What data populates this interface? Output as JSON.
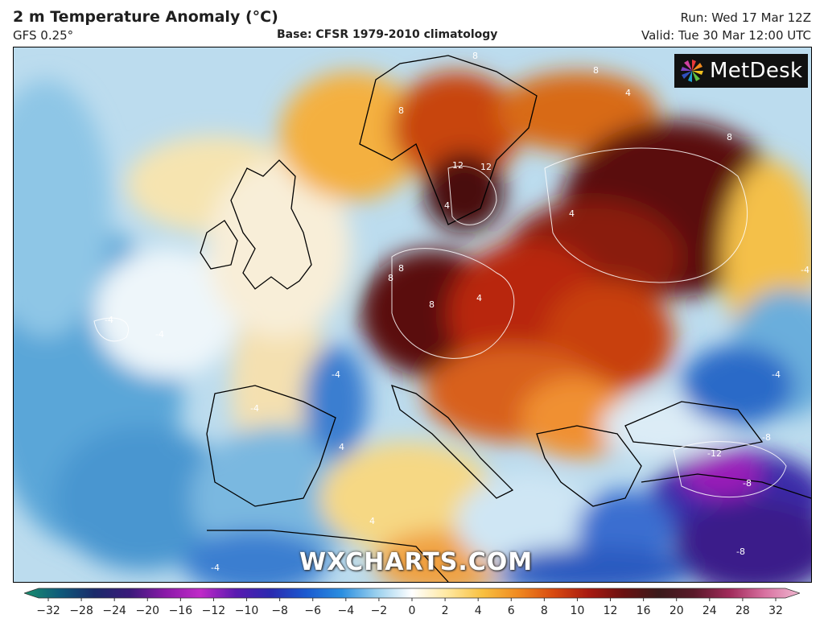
{
  "header": {
    "title": "2 m Temperature Anomaly (°C)",
    "model": "GFS 0.25°",
    "base": "Base: CFSR 1979-2010 climatology",
    "run": "Run: Wed 17 Mar 12Z",
    "valid": "Valid: Tue 30 Mar 12:00 UTC"
  },
  "brand": {
    "name": "MetDesk"
  },
  "watermark": "WXCHARTS.COM",
  "contour_labels": [
    "8",
    "8",
    "8",
    "12",
    "12",
    "8",
    "8",
    "8",
    "8",
    "4",
    "4",
    "4",
    "4",
    "-4",
    "-4",
    "-4",
    "-4",
    "-4",
    "-4",
    "-8",
    "-8",
    "-8",
    "-12",
    "4",
    "4",
    "-4"
  ],
  "colorbar": {
    "ticks": [
      "−32",
      "−28",
      "−24",
      "−20",
      "−16",
      "−12",
      "−10",
      "−8",
      "−6",
      "−4",
      "−2",
      "0",
      "2",
      "4",
      "6",
      "8",
      "10",
      "12",
      "16",
      "20",
      "24",
      "28",
      "32"
    ],
    "colors": [
      "#1a8f6e",
      "#0e5b7a",
      "#1a2a6a",
      "#3a1a7a",
      "#8a1aa8",
      "#c02ac8",
      "#5a1ab0",
      "#2a2ab0",
      "#1a5ad0",
      "#2a8ee0",
      "#9ad0ee",
      "#ffffff",
      "#ffe8a0",
      "#f8c040",
      "#f08a20",
      "#d84a10",
      "#a81a10",
      "#6a1010",
      "#3a1a1a",
      "#5a1a2a",
      "#a02a5a",
      "#d870a0",
      "#f0b8d0"
    ]
  }
}
